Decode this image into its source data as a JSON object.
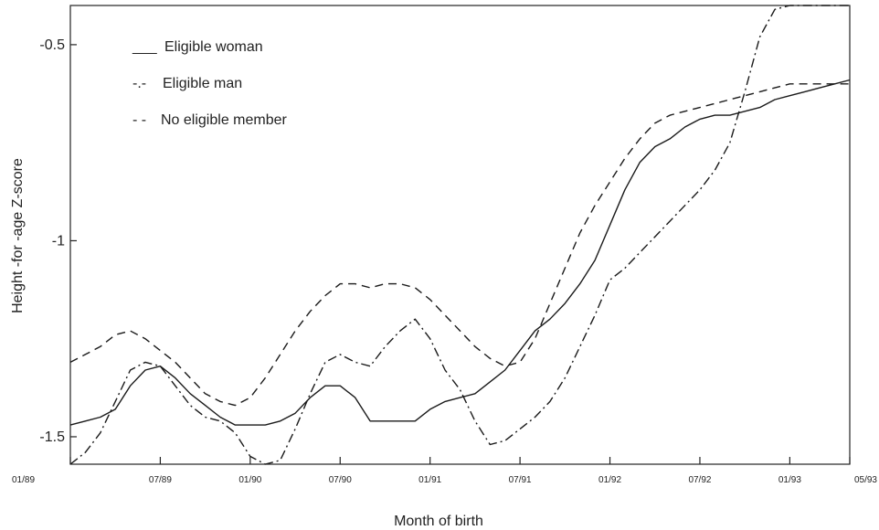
{
  "chart_data": {
    "type": "line",
    "title": "",
    "xlabel": "Month of birth",
    "ylabel": "Height -for -age Z-score",
    "x_tick_labels": [
      "01/89",
      "07/89",
      "01/90",
      "07/90",
      "01/91",
      "07/91",
      "01/92",
      "07/92",
      "01/93",
      "05/93"
    ],
    "x_tick_months": [
      0,
      6,
      12,
      18,
      24,
      30,
      36,
      42,
      48,
      52
    ],
    "xlim_months": [
      0,
      52
    ],
    "y_ticks": [
      -0.5,
      -1,
      -1.5
    ],
    "y_tick_labels": [
      "-0.5",
      "-1",
      "-1.5"
    ],
    "ylim": [
      -1.57,
      -0.4
    ],
    "grid": false,
    "legend_position": "top-left",
    "legend": [
      {
        "marker": "___",
        "label": "Eligible woman"
      },
      {
        "marker": "-.-",
        "label": "Eligible man"
      },
      {
        "marker": "- -",
        "label": "No eligible member"
      }
    ],
    "series": [
      {
        "name": "Eligible woman",
        "style": "solid",
        "x": [
          0,
          1,
          2,
          3,
          4,
          5,
          6,
          7,
          8,
          9,
          10,
          11,
          12,
          13,
          14,
          15,
          16,
          17,
          18,
          19,
          20,
          21,
          22,
          23,
          24,
          25,
          26,
          27,
          28,
          29,
          30,
          31,
          32,
          33,
          34,
          35,
          36,
          37,
          38,
          39,
          40,
          41,
          42,
          43,
          44,
          45,
          46,
          47,
          48,
          49,
          50,
          51,
          52
        ],
        "y": [
          -1.47,
          -1.46,
          -1.45,
          -1.43,
          -1.37,
          -1.33,
          -1.32,
          -1.35,
          -1.39,
          -1.42,
          -1.45,
          -1.47,
          -1.47,
          -1.47,
          -1.46,
          -1.44,
          -1.4,
          -1.37,
          -1.37,
          -1.4,
          -1.46,
          -1.46,
          -1.46,
          -1.46,
          -1.43,
          -1.41,
          -1.4,
          -1.39,
          -1.36,
          -1.33,
          -1.28,
          -1.23,
          -1.2,
          -1.16,
          -1.11,
          -1.05,
          -0.96,
          -0.87,
          -0.8,
          -0.76,
          -0.74,
          -0.71,
          -0.69,
          -0.68,
          -0.68,
          -0.67,
          -0.66,
          -0.64,
          -0.63,
          -0.62,
          -0.61,
          -0.6,
          -0.59
        ]
      },
      {
        "name": "Eligible man",
        "style": "dashdot",
        "x": [
          0,
          1,
          2,
          3,
          4,
          5,
          6,
          7,
          8,
          9,
          10,
          11,
          12,
          13,
          14,
          15,
          16,
          17,
          18,
          19,
          20,
          21,
          22,
          23,
          24,
          25,
          26,
          27,
          28,
          29,
          30,
          31,
          32,
          33,
          34,
          35,
          36,
          37,
          38,
          39,
          40,
          41,
          42,
          43,
          44,
          45,
          46,
          47,
          48,
          49,
          50,
          51,
          52
        ],
        "y": [
          -1.57,
          -1.54,
          -1.49,
          -1.41,
          -1.33,
          -1.31,
          -1.32,
          -1.37,
          -1.42,
          -1.45,
          -1.46,
          -1.49,
          -1.55,
          -1.57,
          -1.56,
          -1.48,
          -1.39,
          -1.31,
          -1.29,
          -1.31,
          -1.32,
          -1.27,
          -1.23,
          -1.2,
          -1.25,
          -1.33,
          -1.38,
          -1.46,
          -1.52,
          -1.51,
          -1.48,
          -1.45,
          -1.41,
          -1.35,
          -1.27,
          -1.19,
          -1.1,
          -1.07,
          -1.03,
          -0.99,
          -0.95,
          -0.91,
          -0.87,
          -0.82,
          -0.75,
          -0.62,
          -0.48,
          -0.41,
          -0.4,
          -0.4,
          -0.4,
          -0.4,
          -0.4
        ]
      },
      {
        "name": "No eligible member",
        "style": "dashed",
        "x": [
          0,
          1,
          2,
          3,
          4,
          5,
          6,
          7,
          8,
          9,
          10,
          11,
          12,
          13,
          14,
          15,
          16,
          17,
          18,
          19,
          20,
          21,
          22,
          23,
          24,
          25,
          26,
          27,
          28,
          29,
          30,
          31,
          32,
          33,
          34,
          35,
          36,
          37,
          38,
          39,
          40,
          41,
          42,
          43,
          44,
          45,
          46,
          47,
          48,
          49,
          50,
          51,
          52
        ],
        "y": [
          -1.31,
          -1.29,
          -1.27,
          -1.24,
          -1.23,
          -1.25,
          -1.28,
          -1.31,
          -1.35,
          -1.39,
          -1.41,
          -1.42,
          -1.4,
          -1.35,
          -1.29,
          -1.23,
          -1.18,
          -1.14,
          -1.11,
          -1.11,
          -1.12,
          -1.11,
          -1.11,
          -1.12,
          -1.15,
          -1.19,
          -1.23,
          -1.27,
          -1.3,
          -1.32,
          -1.31,
          -1.25,
          -1.16,
          -1.07,
          -0.98,
          -0.91,
          -0.85,
          -0.79,
          -0.74,
          -0.7,
          -0.68,
          -0.67,
          -0.66,
          -0.65,
          -0.64,
          -0.63,
          -0.62,
          -0.61,
          -0.6,
          -0.6,
          -0.6,
          -0.6,
          -0.6
        ]
      }
    ]
  }
}
